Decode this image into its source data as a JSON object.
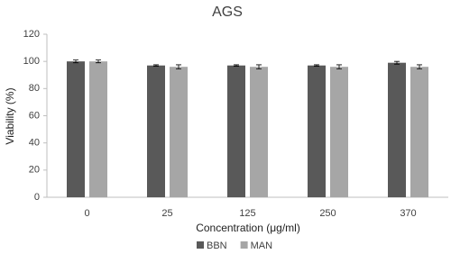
{
  "chart_data": {
    "type": "bar",
    "title": "AGS",
    "x_label": "Concentration (μg/ml)",
    "y_label": "Viability (%)",
    "categories": [
      "0",
      "25",
      "125",
      "250",
      "370"
    ],
    "series": [
      {
        "name": "BBN",
        "color": "#595959",
        "values": [
          100,
          97,
          97,
          97,
          99
        ],
        "errors": [
          1,
          0.5,
          0.5,
          0.5,
          1
        ]
      },
      {
        "name": "MAN",
        "color": "#a6a6a6",
        "values": [
          100,
          96,
          96,
          96,
          96
        ],
        "errors": [
          1,
          1.5,
          1.5,
          1.5,
          1.5
        ]
      }
    ],
    "ylim": [
      0,
      120
    ],
    "yticks": [
      0,
      20,
      40,
      60,
      80,
      100,
      120
    ],
    "grid": false,
    "legend": "bottom"
  }
}
